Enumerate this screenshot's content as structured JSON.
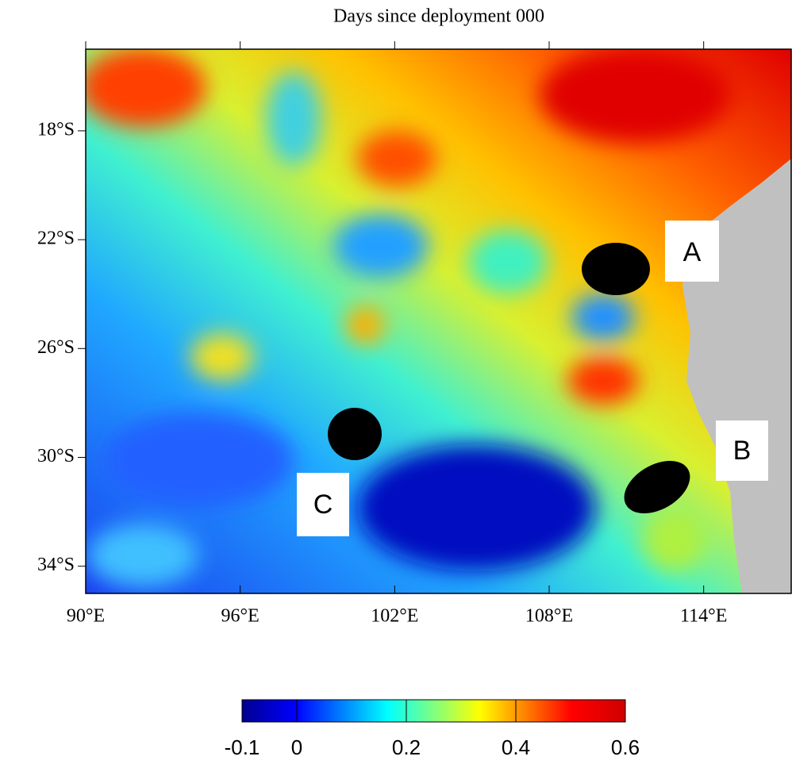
{
  "chart_data": {
    "type": "contour-map",
    "title": "Days since deployment 000",
    "xlim": [
      90,
      117.4
    ],
    "ylim": [
      -35,
      -15
    ],
    "xticks": [
      {
        "value": 90,
        "label": "90°E"
      },
      {
        "value": 96,
        "label": "96°E"
      },
      {
        "value": 102,
        "label": "102°E"
      },
      {
        "value": 108,
        "label": "108°E"
      },
      {
        "value": 114,
        "label": "114°E"
      }
    ],
    "yticks": [
      {
        "value": -18,
        "label": "18°S"
      },
      {
        "value": -22,
        "label": "22°S"
      },
      {
        "value": -26,
        "label": "26°S"
      },
      {
        "value": -30,
        "label": "30°S"
      },
      {
        "value": -34,
        "label": "34°S"
      }
    ],
    "colorbar": {
      "lim": [
        -0.1,
        0.6
      ],
      "ticks": [
        -0.1,
        0,
        0.2,
        0.4,
        0.6
      ]
    },
    "annotations": [
      "A",
      "B",
      "C"
    ]
  }
}
